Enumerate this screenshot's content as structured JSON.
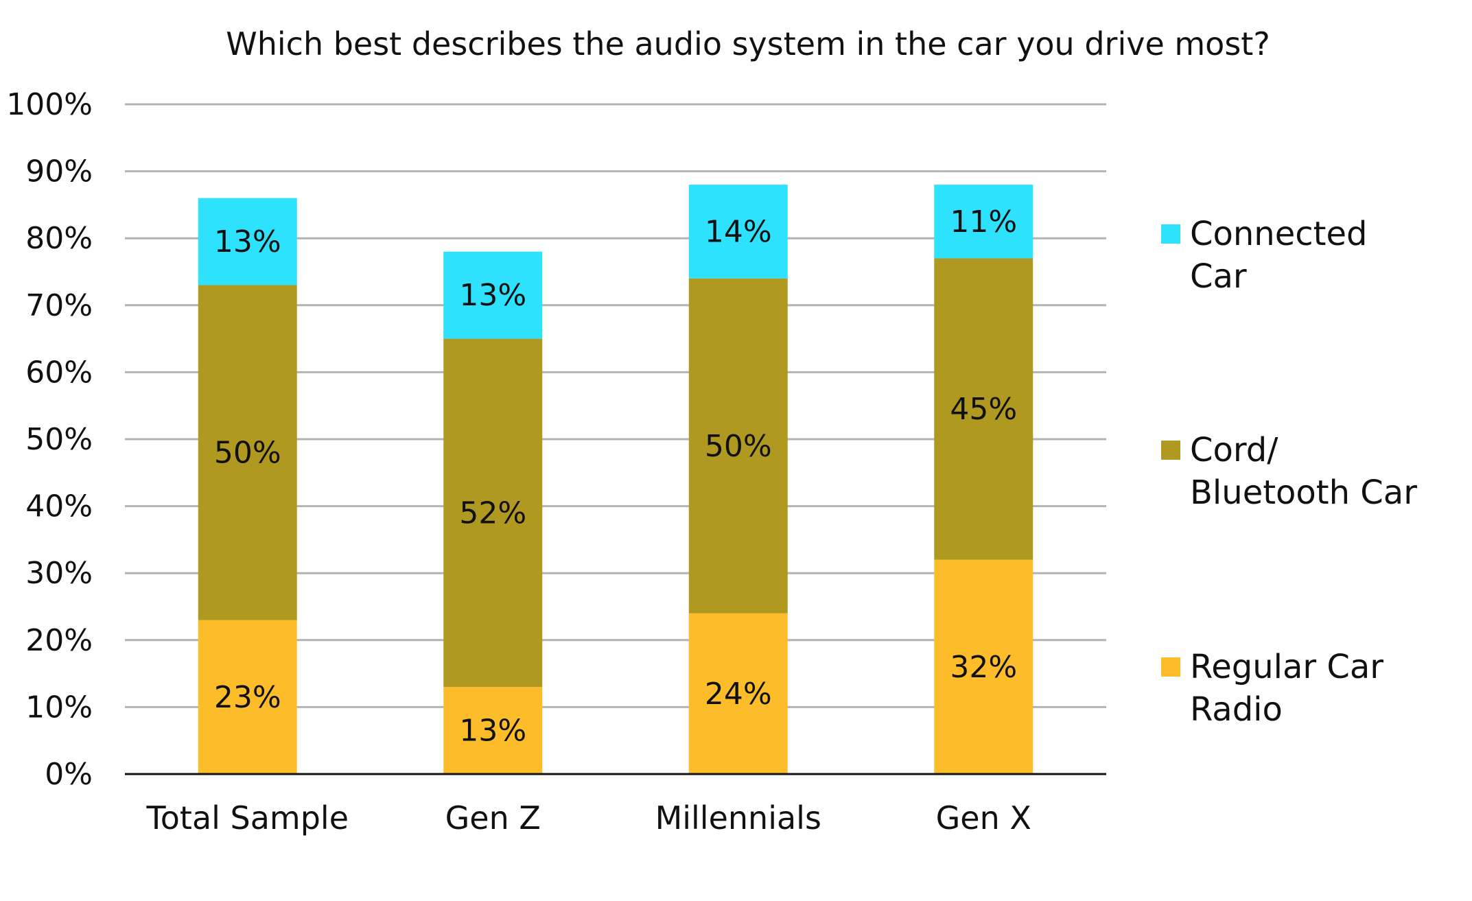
{
  "chart_data": {
    "type": "bar",
    "stacked": true,
    "title": "Which best describes the audio system in the car you drive most?",
    "categories": [
      "Total Sample",
      "Gen Z",
      "Millennials",
      "Gen X"
    ],
    "series": [
      {
        "name": "Regular Car Radio",
        "legend_lines": [
          "Regular Car",
          "Radio"
        ],
        "values": [
          23,
          13,
          24,
          32
        ],
        "labels": [
          "23%",
          "13%",
          "24%",
          "32%"
        ],
        "color": "#FDBD2B"
      },
      {
        "name": "Cord/ Bluetooth Car",
        "legend_lines": [
          "Cord/",
          "Bluetooth Car"
        ],
        "values": [
          50,
          52,
          50,
          45
        ],
        "labels": [
          "50%",
          "52%",
          "50%",
          "45%"
        ],
        "color": "#B09921"
      },
      {
        "name": "Connected Car",
        "legend_lines": [
          "Connected",
          "Car"
        ],
        "values": [
          13,
          13,
          14,
          11
        ],
        "labels": [
          "13%",
          "13%",
          "14%",
          "11%"
        ],
        "color": "#2EE1FD"
      }
    ],
    "ylim": [
      0,
      100
    ],
    "yticks": [
      0,
      10,
      20,
      30,
      40,
      50,
      60,
      70,
      80,
      90,
      100
    ],
    "ytick_labels": [
      "0%",
      "10%",
      "20%",
      "30%",
      "40%",
      "50%",
      "60%",
      "70%",
      "80%",
      "90%",
      "100%"
    ],
    "grid": true,
    "legend_position": "right",
    "legend_order": [
      "Connected Car",
      "Cord/ Bluetooth Car",
      "Regular Car Radio"
    ]
  }
}
